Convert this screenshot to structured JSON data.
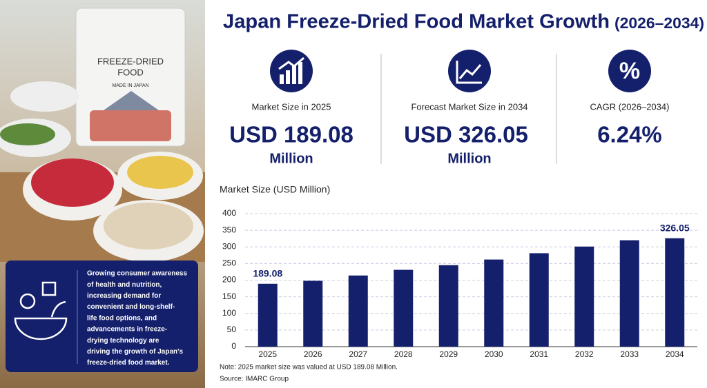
{
  "header": {
    "title": "Japan Freeze-Dried Food Market Growth",
    "title_years": "(2026–2034)"
  },
  "stats": [
    {
      "label": "Market Size in 2025",
      "value": "USD 189.08",
      "unit": "Million"
    },
    {
      "label": "Forecast Market Size in 2034",
      "value": "USD 326.05",
      "unit": "Million"
    },
    {
      "label": "CAGR (2026–2034)",
      "value": "6.24%"
    }
  ],
  "photo": {
    "bag_lines": [
      "FREEZE-DRIED",
      "FOOD",
      "MADE IN JAPAN"
    ]
  },
  "sidebar": {
    "lines": [
      "Growing consumer awareness",
      "of health and nutrition,",
      "increasing demand for",
      "convenient and long-shelf-",
      "life food options, and",
      "advancements in freeze-",
      "drying technology are",
      "driving the growth of Japan's",
      "freeze-dried food market."
    ]
  },
  "chart_data": {
    "type": "bar",
    "title": "Market Size (USD Million)",
    "categories": [
      "2025",
      "2026",
      "2027",
      "2028",
      "2029",
      "2030",
      "2031",
      "2032",
      "2033",
      "2034"
    ],
    "values": [
      189.08,
      198,
      214,
      231,
      245,
      262,
      281,
      301,
      320,
      326.05
    ],
    "value_labels": [
      "189.08",
      null,
      null,
      null,
      null,
      null,
      null,
      null,
      null,
      "326.05"
    ],
    "color": "#14206b",
    "ylim": [
      0,
      400
    ],
    "yticks": [
      0,
      50,
      100,
      150,
      200,
      250,
      300,
      350,
      400
    ],
    "grid": true
  },
  "footer": {
    "note": "Note: 2025 market size was valued at USD 189.08 Million.",
    "source": "Source: IMARC Group"
  }
}
